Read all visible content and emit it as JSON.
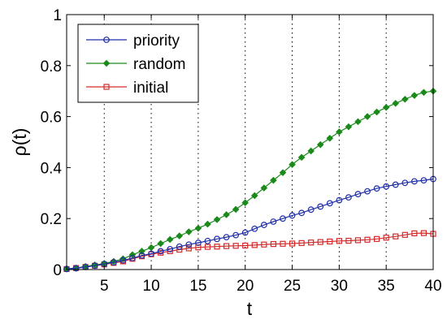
{
  "chart_data": {
    "type": "line",
    "xlabel": "t",
    "ylabel": "ρ(t)",
    "xlim": [
      1,
      40
    ],
    "ylim": [
      0,
      1
    ],
    "xticks": [
      5,
      10,
      15,
      20,
      25,
      30,
      35,
      40
    ],
    "yticks": [
      0,
      0.2,
      0.4,
      0.6,
      0.8,
      1
    ],
    "xtick_labels": [
      "5",
      "10",
      "15",
      "20",
      "25",
      "30",
      "35",
      "40"
    ],
    "ytick_labels": [
      "0",
      "0.2",
      "0.4",
      "0.6",
      "0.8",
      "1"
    ],
    "grid": "vertical dotted lines at x ticks",
    "legend_position": "top-left",
    "x": [
      1,
      2,
      3,
      4,
      5,
      6,
      7,
      8,
      9,
      10,
      11,
      12,
      13,
      14,
      15,
      16,
      17,
      18,
      19,
      20,
      21,
      22,
      23,
      24,
      25,
      26,
      27,
      28,
      29,
      30,
      31,
      32,
      33,
      34,
      35,
      36,
      37,
      38,
      39,
      40
    ],
    "series": [
      {
        "name": "priority",
        "color": "#1f2fa8",
        "marker": "circle",
        "values": [
          0.002,
          0.005,
          0.01,
          0.015,
          0.022,
          0.028,
          0.036,
          0.045,
          0.055,
          0.062,
          0.072,
          0.08,
          0.09,
          0.098,
          0.105,
          0.112,
          0.12,
          0.127,
          0.135,
          0.145,
          0.16,
          0.175,
          0.188,
          0.2,
          0.212,
          0.222,
          0.235,
          0.247,
          0.26,
          0.272,
          0.283,
          0.296,
          0.307,
          0.318,
          0.326,
          0.333,
          0.34,
          0.346,
          0.35,
          0.355
        ]
      },
      {
        "name": "random",
        "color": "#1a8a1a",
        "marker": "diamond",
        "values": [
          0.002,
          0.006,
          0.012,
          0.018,
          0.024,
          0.032,
          0.042,
          0.058,
          0.072,
          0.086,
          0.102,
          0.118,
          0.132,
          0.148,
          0.162,
          0.178,
          0.196,
          0.215,
          0.236,
          0.262,
          0.29,
          0.32,
          0.35,
          0.38,
          0.412,
          0.44,
          0.465,
          0.49,
          0.515,
          0.54,
          0.56,
          0.58,
          0.6,
          0.618,
          0.636,
          0.652,
          0.668,
          0.683,
          0.695,
          0.7
        ]
      },
      {
        "name": "initial",
        "color": "#d42a2a",
        "marker": "square",
        "values": [
          0.002,
          0.006,
          0.01,
          0.015,
          0.02,
          0.026,
          0.032,
          0.042,
          0.052,
          0.06,
          0.066,
          0.072,
          0.078,
          0.083,
          0.087,
          0.089,
          0.09,
          0.092,
          0.093,
          0.094,
          0.096,
          0.098,
          0.1,
          0.101,
          0.102,
          0.104,
          0.106,
          0.108,
          0.11,
          0.112,
          0.113,
          0.115,
          0.117,
          0.12,
          0.125,
          0.13,
          0.136,
          0.142,
          0.143,
          0.14
        ]
      }
    ]
  }
}
